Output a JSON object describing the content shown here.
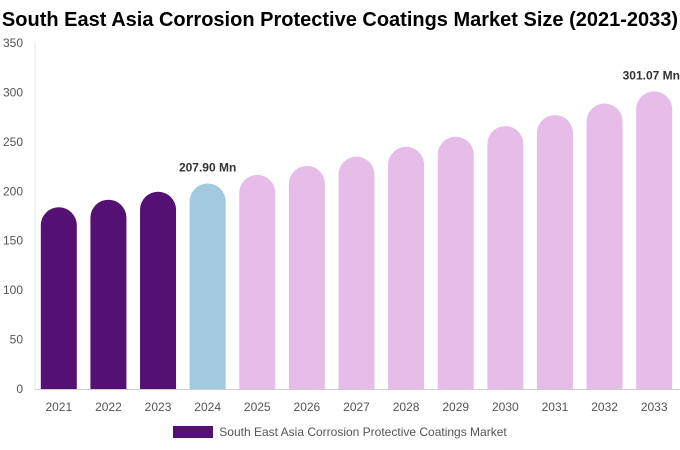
{
  "chart_data": {
    "type": "bar",
    "title": "South East Asia Corrosion Protective Coatings Market Size (2021-2033)",
    "categories": [
      "2021",
      "2022",
      "2023",
      "2024",
      "2025",
      "2026",
      "2027",
      "2028",
      "2029",
      "2030",
      "2031",
      "2032",
      "2033"
    ],
    "series": [
      {
        "name": "South East Asia Corrosion Protective Coatings Market",
        "values": [
          183.8,
          191.5,
          199.5,
          207.9,
          216.6,
          225.7,
          235.1,
          245.0,
          255.3,
          266.0,
          277.1,
          288.8,
          301.07
        ]
      }
    ],
    "data_labels": [
      {
        "category": "2024",
        "text": "207.90 Mn"
      },
      {
        "category": "2033",
        "text": "301.07 Mn"
      }
    ],
    "yticks": [
      0,
      50,
      100,
      150,
      200,
      250,
      300,
      350
    ],
    "ylim": [
      0,
      350
    ],
    "grid": false,
    "legend_position": "bottom",
    "colors": {
      "historical": "#541073",
      "base_year": "#a3c9de",
      "forecast": "#e6bde9"
    }
  }
}
